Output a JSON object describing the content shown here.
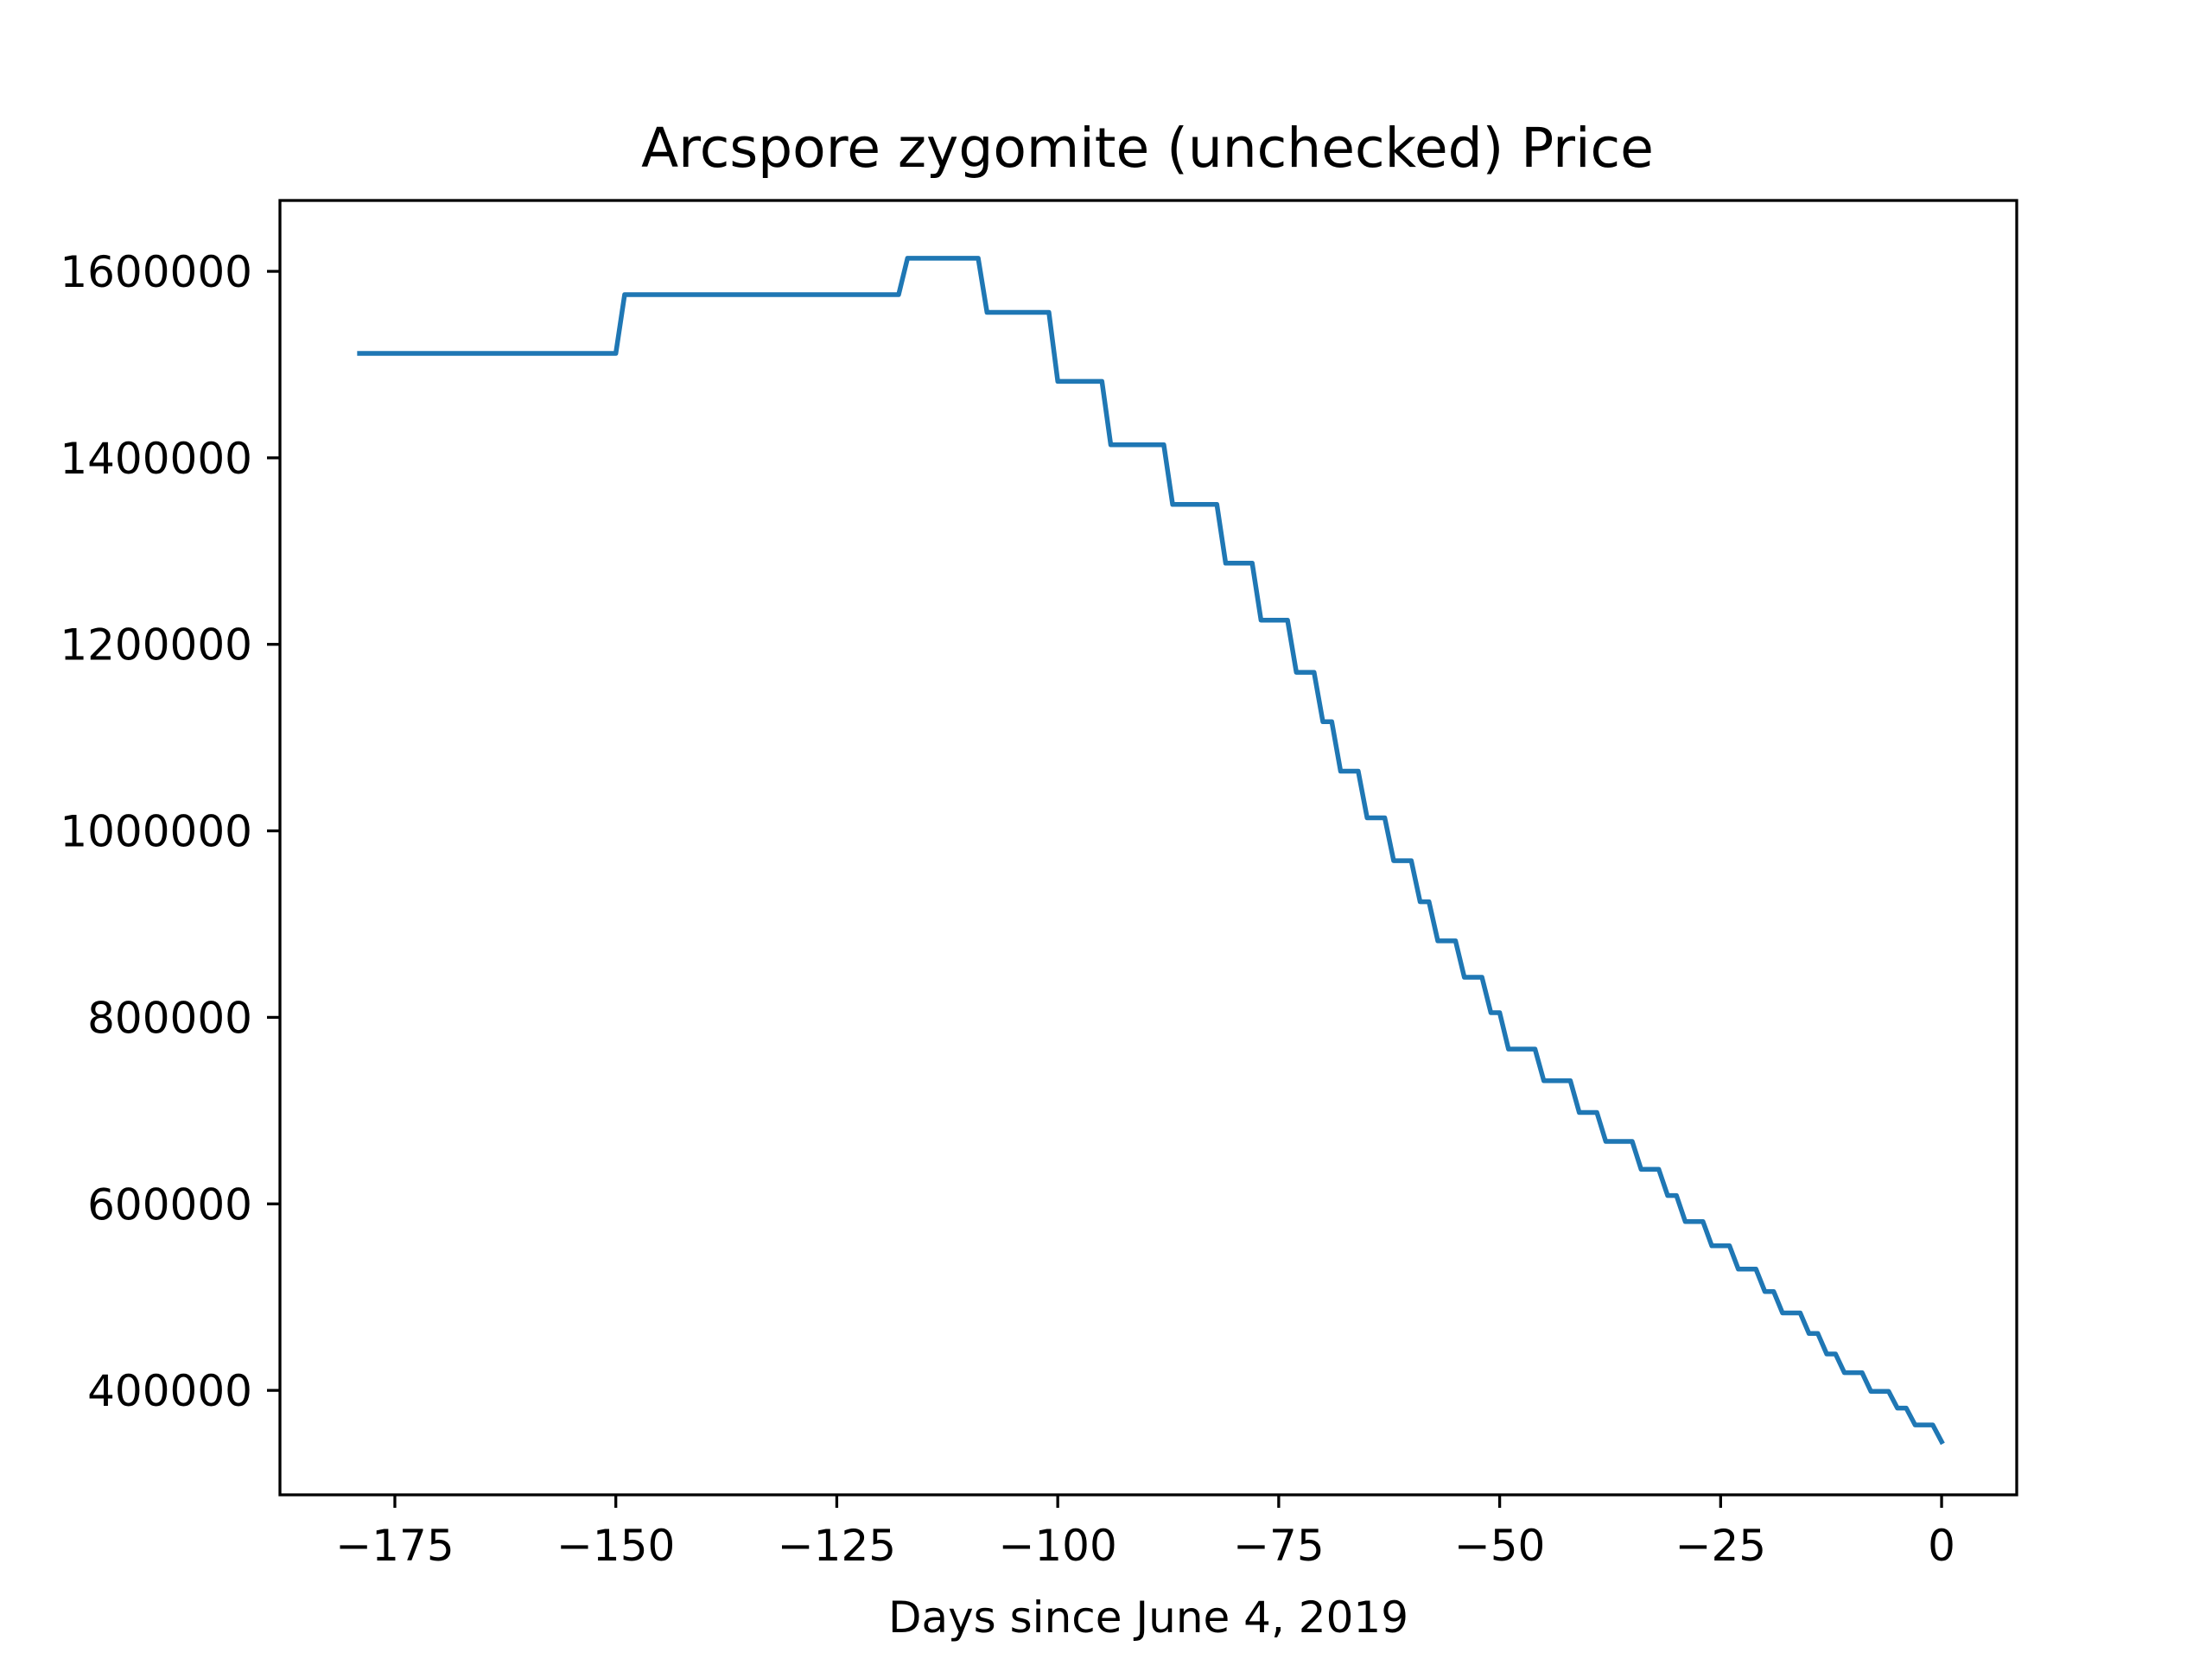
{
  "chart_data": {
    "type": "line",
    "title": "Arcspore zygomite (unchecked) Price",
    "xlabel": "Days since June 4, 2019",
    "ylabel": "",
    "xlim": [
      -188,
      8.5
    ],
    "ylim": [
      288000,
      1676000
    ],
    "xticks": [
      -175,
      -150,
      -125,
      -100,
      -75,
      -50,
      -25,
      0
    ],
    "xtick_labels": [
      "−175",
      "−150",
      "−125",
      "−100",
      "−75",
      "−50",
      "−25",
      "0"
    ],
    "yticks": [
      400000,
      600000,
      800000,
      1000000,
      1200000,
      1400000,
      1600000
    ],
    "ytick_labels": [
      "400000",
      "600000",
      "800000",
      "1000000",
      "1200000",
      "1400000",
      "1600000"
    ],
    "grid": false,
    "legend": "none",
    "series": [
      {
        "color": "#1f77b4",
        "x": [
          -179,
          -150,
          -149,
          -120,
          -118,
          -117,
          -109,
          -108,
          -101,
          -100,
          -95,
          -94,
          -88,
          -87,
          -82,
          -81,
          -78,
          -77,
          -74,
          -73,
          -71,
          -70,
          -69,
          -68,
          -66,
          -65,
          -63,
          -62,
          -60,
          -59,
          -58,
          -57,
          -55,
          -54,
          -52,
          -51,
          -50,
          -49,
          -46,
          -45,
          -42,
          -41,
          -39,
          -38,
          -35,
          -34,
          -32,
          -31,
          -30,
          -29,
          -27,
          -26,
          -24,
          -23,
          -21,
          -20,
          -19,
          -18,
          -16,
          -15,
          -14,
          -13,
          -12,
          -11,
          -9,
          -8,
          -6,
          -5,
          -4,
          -3,
          -1,
          0
        ],
        "y": [
          1512000,
          1512000,
          1575000,
          1575000,
          1575000,
          1614000,
          1614000,
          1556000,
          1556000,
          1482000,
          1482000,
          1414000,
          1414000,
          1350000,
          1350000,
          1287000,
          1287000,
          1226000,
          1226000,
          1170000,
          1170000,
          1117000,
          1117000,
          1064000,
          1064000,
          1014000,
          1014000,
          968000,
          968000,
          924000,
          924000,
          882000,
          882000,
          843000,
          843000,
          805000,
          805000,
          766000,
          766000,
          732000,
          732000,
          698000,
          698000,
          667000,
          667000,
          637000,
          637000,
          609000,
          609000,
          581000,
          581000,
          555000,
          555000,
          530000,
          530000,
          506000,
          506000,
          483000,
          483000,
          461000,
          461000,
          439000,
          439000,
          419000,
          419000,
          399000,
          399000,
          381000,
          381000,
          363000,
          363000,
          345000
        ]
      }
    ]
  }
}
